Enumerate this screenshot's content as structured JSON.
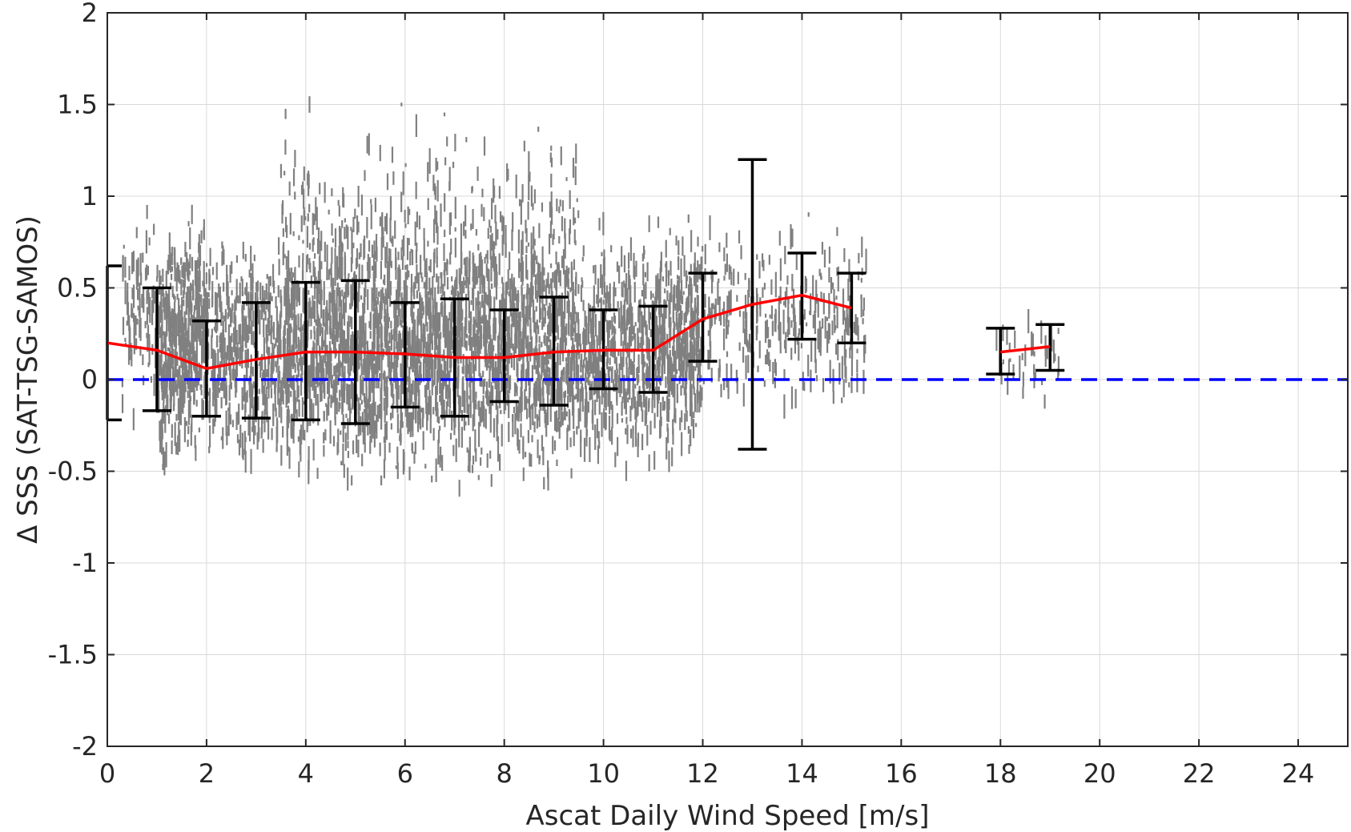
{
  "chart_data": {
    "type": "scatter",
    "xlabel": "Ascat Daily Wind Speed [m/s]",
    "ylabel": "Δ SSS (SAT-TSG-SAMOS)",
    "xlim": [
      0,
      25
    ],
    "ylim": [
      -2,
      2
    ],
    "xticks": [
      "0",
      "2",
      "4",
      "6",
      "8",
      "10",
      "12",
      "14",
      "16",
      "18",
      "20",
      "22",
      "24"
    ],
    "xtick_values": [
      0,
      2,
      4,
      6,
      8,
      10,
      12,
      14,
      16,
      18,
      20,
      22,
      24
    ],
    "yticks": [
      "-2",
      "-1.5",
      "-1",
      "-0.5",
      "0",
      "0.5",
      "1",
      "1.5",
      "2"
    ],
    "ytick_values": [
      -2,
      -1.5,
      -1,
      -0.5,
      0,
      0.5,
      1,
      1.5,
      2
    ],
    "grid": true,
    "zero_reference_line": 0,
    "colors": {
      "scatter": "#808080",
      "mean_line": "#ff0000",
      "error_bars": "#000000",
      "zero_line": "#0000ff",
      "grid": "#d9d9d9",
      "axes": "#262626"
    },
    "scatter_clusters": [
      {
        "x_range": [
          0.3,
          2.0
        ],
        "y_range": [
          -0.25,
          0.95
        ],
        "density": 260
      },
      {
        "x_range": [
          1.0,
          12.0
        ],
        "y_range": [
          -0.55,
          0.85
        ],
        "density": 3200
      },
      {
        "x_range": [
          3.5,
          9.5
        ],
        "y_range": [
          -0.65,
          1.5
        ],
        "density": 900
      },
      {
        "x_range": [
          11.0,
          15.3
        ],
        "y_range": [
          -0.2,
          0.9
        ],
        "density": 420
      },
      {
        "x_range": [
          17.9,
          19.2
        ],
        "y_range": [
          -0.15,
          0.45
        ],
        "density": 40
      }
    ],
    "series": [
      {
        "x": [
          0,
          1,
          2,
          3,
          4,
          5,
          6,
          7,
          8,
          9,
          10,
          11,
          12,
          13,
          14,
          15
        ],
        "mean": [
          0.2,
          0.16,
          0.06,
          0.11,
          0.15,
          0.15,
          0.14,
          0.12,
          0.12,
          0.15,
          0.16,
          0.16,
          0.33,
          0.41,
          0.46,
          0.39
        ],
        "lower": [
          -0.22,
          -0.17,
          -0.2,
          -0.21,
          -0.22,
          -0.24,
          -0.15,
          -0.2,
          -0.12,
          -0.14,
          -0.05,
          -0.07,
          0.1,
          -0.38,
          0.22,
          0.2
        ],
        "upper": [
          0.62,
          0.5,
          0.32,
          0.42,
          0.53,
          0.54,
          0.42,
          0.44,
          0.38,
          0.45,
          0.38,
          0.4,
          0.58,
          1.2,
          0.69,
          0.58
        ]
      },
      {
        "x": [
          18,
          19
        ],
        "mean": [
          0.15,
          0.18
        ],
        "lower": [
          0.03,
          0.05
        ],
        "upper": [
          0.28,
          0.3
        ]
      }
    ]
  }
}
